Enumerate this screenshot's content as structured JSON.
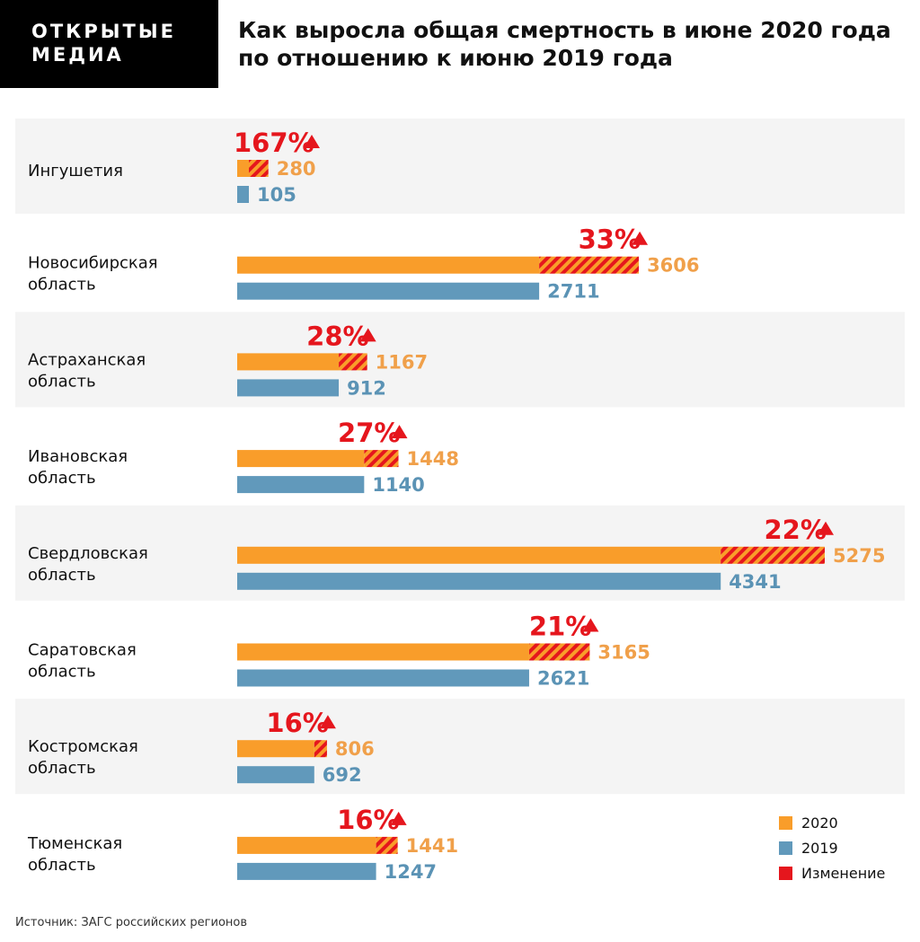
{
  "logo": {
    "line1": "ОТКРЫТЫЕ",
    "line2": "МЕДИА"
  },
  "title": "Как выросла общая смертность в июне 2020 года по отношению к июню 2019 года",
  "source": "Источник: ЗАГС российских регионов",
  "colors": {
    "y2020": "#f99d2a",
    "y2019": "#6199bb",
    "change": "#e5161d",
    "row_bg": "#f4f4f4"
  },
  "chart_data": {
    "type": "bar",
    "orientation": "horizontal",
    "categories": [
      "Ингушетия",
      "Новосибирская область",
      "Астраханская область",
      "Ивановская область",
      "Свердловская область",
      "Саратовская область",
      "Костромская область",
      "Тюменская область"
    ],
    "series": [
      {
        "name": "2020",
        "values": [
          280,
          3606,
          1167,
          1448,
          5275,
          3165,
          806,
          1441
        ]
      },
      {
        "name": "2019",
        "values": [
          105,
          2711,
          912,
          1140,
          4341,
          2621,
          692,
          1247
        ]
      }
    ],
    "change_labels": [
      "167%",
      "33%",
      "28%",
      "27%",
      "22%",
      "21%",
      "16%",
      "16%"
    ],
    "legend": [
      "2020",
      "2019",
      "Изменение"
    ],
    "legend_position": "bottom-right",
    "xlim": [
      0,
      5275
    ],
    "grid": false
  }
}
